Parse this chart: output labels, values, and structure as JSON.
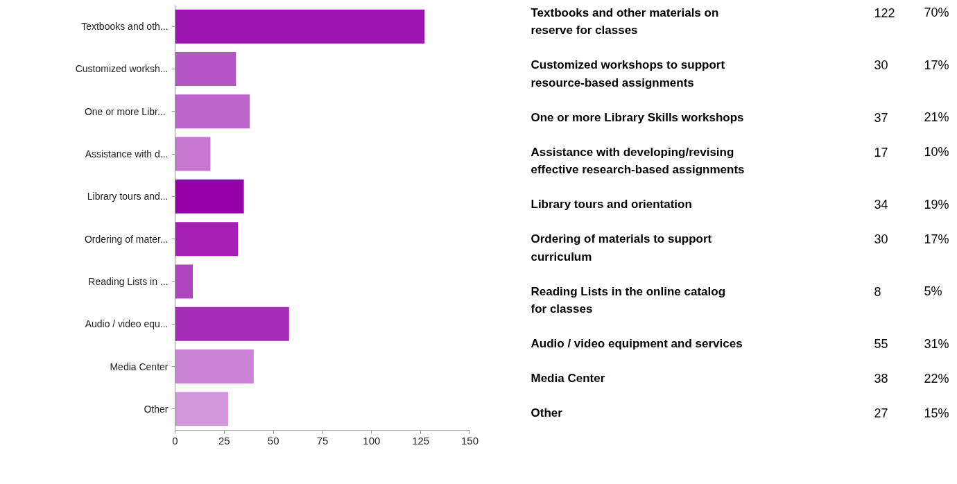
{
  "chart_data": [
    {
      "type": "bar",
      "orientation": "horizontal",
      "categories": [
        "Textbooks and oth...",
        "Customized worksh...",
        "One or more  Libr...",
        "Assistance with d...",
        "Library tours and...",
        "Ordering of mater...",
        "Reading Lists in ...",
        "Audio / video equ...",
        "Media Center",
        "Other"
      ],
      "values": [
        127,
        31,
        38,
        18,
        35,
        32,
        9,
        58,
        40,
        27
      ],
      "colors": [
        "#9c14b0",
        "#b655c6",
        "#bc65cb",
        "#c678d1",
        "#9400a6",
        "#a51fb5",
        "#b043c0",
        "#a42fb6",
        "#ca83d4",
        "#d196db"
      ],
      "xlim": [
        0,
        150
      ],
      "xticks": [
        0,
        25,
        50,
        75,
        100,
        125,
        150
      ],
      "grid": false
    },
    {
      "type": "other",
      "categories": [
        "Textbooks and other materials on reserve for classes",
        "Customized workshops to support resource-based assignments",
        "One or more Library Skills workshops",
        "Assistance with developing/revising effective research-based assignments",
        "Library tours and orientation",
        "Ordering of materials to support curriculum",
        "Reading Lists in the online catalog for classes",
        "Audio / video equipment and services",
        "Media Center",
        "Other"
      ],
      "data_labels": true,
      "series": [
        {
          "values": [
            122,
            30,
            37,
            17,
            34,
            30,
            8,
            55,
            38,
            27
          ]
        },
        {
          "values": [
            70,
            17,
            21,
            10,
            19,
            17,
            5,
            31,
            22,
            15
          ],
          "value_labels": [
            "70%",
            "17%",
            "21%",
            "10%",
            "19%",
            "17%",
            "5%",
            "31%",
            "22%",
            "15%"
          ]
        }
      ]
    }
  ]
}
